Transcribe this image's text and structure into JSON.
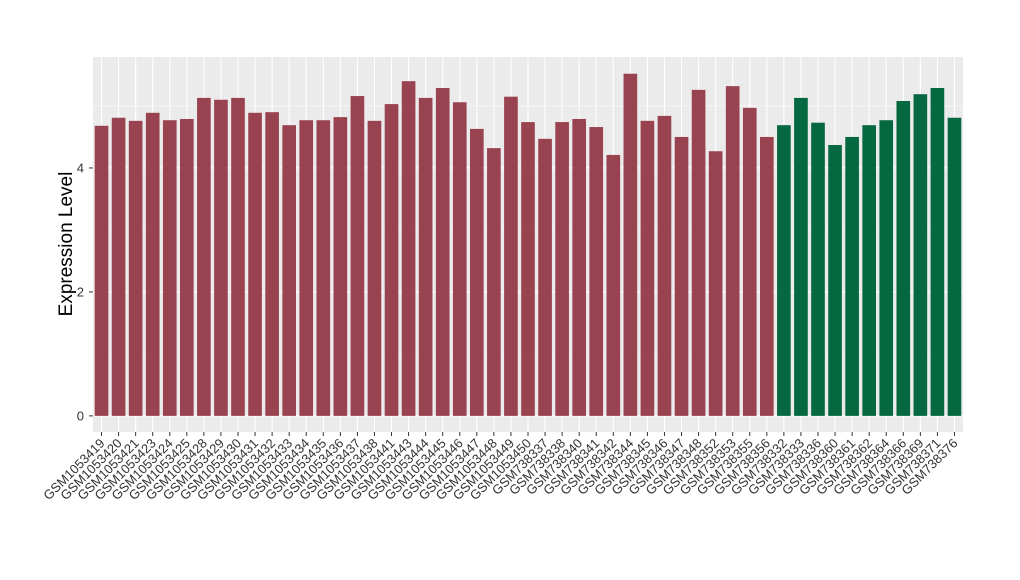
{
  "chart_data": {
    "type": "bar",
    "y_label": "Expression Level",
    "categories": [
      "GSM1053419",
      "GSM1053420",
      "GSM1053421",
      "GSM1053423",
      "GSM1053424",
      "GSM1053425",
      "GSM1053428",
      "GSM1053429",
      "GSM1053430",
      "GSM1053431",
      "GSM1053432",
      "GSM1053433",
      "GSM1053434",
      "GSM1053435",
      "GSM1053436",
      "GSM1053437",
      "GSM1053438",
      "GSM1053441",
      "GSM1053443",
      "GSM1053444",
      "GSM1053445",
      "GSM1053446",
      "GSM1053447",
      "GSM1053448",
      "GSM1053449",
      "GSM1053450",
      "GSM738337",
      "GSM738338",
      "GSM738340",
      "GSM738341",
      "GSM738342",
      "GSM738344",
      "GSM738345",
      "GSM738346",
      "GSM738347",
      "GSM738348",
      "GSM738352",
      "GSM738353",
      "GSM738355",
      "GSM738356",
      "GSM738332",
      "GSM738333",
      "GSM738336",
      "GSM738360",
      "GSM738361",
      "GSM738362",
      "GSM738364",
      "GSM738366",
      "GSM738369",
      "GSM738371",
      "GSM738376"
    ],
    "values": [
      4.68,
      4.81,
      4.76,
      4.89,
      4.77,
      4.79,
      5.13,
      5.1,
      5.13,
      4.89,
      4.9,
      4.69,
      4.77,
      4.77,
      4.82,
      5.16,
      4.76,
      5.03,
      5.4,
      5.13,
      5.29,
      5.06,
      4.63,
      4.32,
      5.15,
      4.74,
      4.47,
      4.74,
      4.79,
      4.66,
      4.21,
      5.52,
      4.76,
      4.84,
      4.5,
      5.26,
      4.27,
      5.32,
      4.97,
      4.5,
      4.69,
      5.13,
      4.73,
      4.37,
      4.5,
      4.69,
      4.77,
      5.08,
      5.19,
      5.29,
      4.81
    ],
    "colors": [
      "#9a4350",
      "#9a4350",
      "#9a4350",
      "#9a4350",
      "#9a4350",
      "#9a4350",
      "#9a4350",
      "#9a4350",
      "#9a4350",
      "#9a4350",
      "#9a4350",
      "#9a4350",
      "#9a4350",
      "#9a4350",
      "#9a4350",
      "#9a4350",
      "#9a4350",
      "#9a4350",
      "#9a4350",
      "#9a4350",
      "#9a4350",
      "#9a4350",
      "#9a4350",
      "#9a4350",
      "#9a4350",
      "#9a4350",
      "#9a4350",
      "#9a4350",
      "#9a4350",
      "#9a4350",
      "#9a4350",
      "#9a4350",
      "#9a4350",
      "#9a4350",
      "#9a4350",
      "#9a4350",
      "#9a4350",
      "#9a4350",
      "#9a4350",
      "#9a4350",
      "#066841",
      "#066841",
      "#066841",
      "#066841",
      "#066841",
      "#066841",
      "#066841",
      "#066841",
      "#066841",
      "#066841",
      "#066841"
    ],
    "ylim": [
      -0.26,
      5.79
    ],
    "yticks": [
      0,
      2,
      4
    ],
    "grid": true
  }
}
